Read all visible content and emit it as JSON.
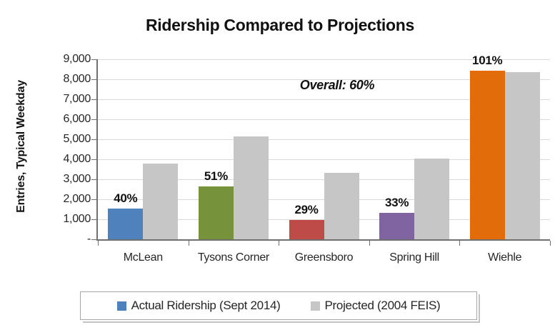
{
  "chart_data": {
    "type": "bar",
    "title": "Ridership Compared to Projections",
    "ylabel": "Entries, Typical Weekday",
    "xlabel": "",
    "categories": [
      "McLean",
      "Tysons Corner",
      "Greensboro",
      "Spring Hill",
      "Wiehle"
    ],
    "series": [
      {
        "name": "Actual Ridership (Sept 2014)",
        "values": [
          1520,
          2630,
          960,
          1330,
          8440
        ],
        "colors": [
          "#4F81BD",
          "#76933C",
          "#BE4B48",
          "#8064A2",
          "#E36C0A"
        ],
        "data_labels": [
          "40%",
          "51%",
          "29%",
          "33%",
          "101%"
        ]
      },
      {
        "name": "Projected (2004 FEIS)",
        "values": [
          3800,
          5160,
          3310,
          4030,
          8360
        ],
        "color": "#C6C6C6"
      }
    ],
    "annotation": "Overall: 60%",
    "ylim": [
      0,
      9000
    ],
    "ytick_step": 1000,
    "ytick_labels": [
      "-",
      "1,000",
      "2,000",
      "3,000",
      "4,000",
      "5,000",
      "6,000",
      "7,000",
      "8,000",
      "9,000"
    ],
    "grid": true,
    "legend_position": "bottom"
  },
  "palette": {
    "gridline": "#D9D9D9",
    "axis": "#6F6F6F",
    "legend_border": "#A6A6A6",
    "legend_shadow": "#C3C3C3"
  }
}
